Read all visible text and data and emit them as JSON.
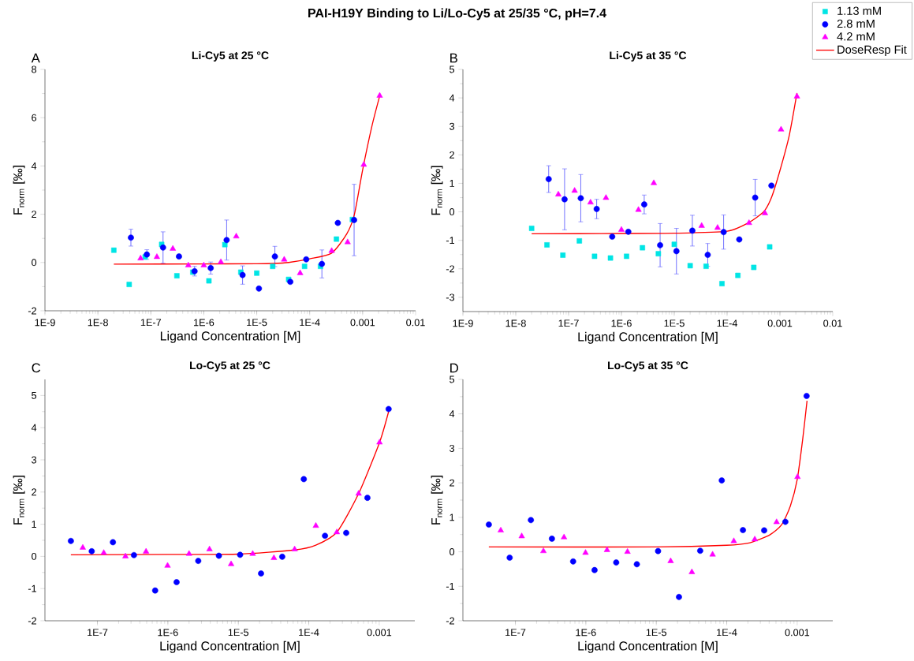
{
  "chart_data": [
    {
      "type": "scatter",
      "title": "Li-Cy5 at 25 °C",
      "xlabel": "Ligand Concentration [M]",
      "ylabel": "F$_{norm}$ [‰]",
      "log": "x",
      "annotations": [
        "PAI-H19Y Binding to Li/Lo-Cy5 at 25/35 °C, pH=7.4",
        "A"
      ],
      "xlim": [
        1e-09,
        0.01
      ],
      "ylim": [
        -2,
        8
      ],
      "xticks": [
        {
          "value": 1e-09,
          "label": "1E-9"
        },
        {
          "value": 1e-08,
          "label": "1E-8"
        },
        {
          "value": 1e-07,
          "label": "1E-7"
        },
        {
          "value": 1e-06,
          "label": "1E-6"
        },
        {
          "value": 1e-05,
          "label": "1E-5"
        },
        {
          "value": 0.0001,
          "label": "1E-4"
        },
        0.001,
        0.01
      ],
      "yticks": [
        -2,
        0,
        2,
        4,
        6,
        8
      ],
      "series": [
        {
          "marker": "square",
          "color": "#00e5e5",
          "x": [
            2e-08,
            3.9e-08,
            7.8e-08,
            1.6e-07,
            3.1e-07,
            6.2e-07,
            1.25e-06,
            2.5e-06,
            5e-06,
            1e-05,
            2e-05,
            4e-05,
            8e-05,
            0.00016,
            0.00032,
            0.00064
          ],
          "values": [
            0.51,
            -0.91,
            0.23,
            0.75,
            -0.55,
            -0.4,
            -0.76,
            0.74,
            -0.4,
            -0.44,
            -0.16,
            -0.7,
            -0.16,
            -0.16,
            0.97,
            1.78
          ]
        },
        {
          "marker": "circle",
          "color": "#0000ff",
          "x": [
            4.2e-08,
            8.4e-08,
            1.7e-07,
            3.4e-07,
            6.7e-07,
            1.35e-06,
            2.7e-06,
            5.4e-06,
            1.1e-05,
            2.2e-05,
            4.3e-05,
            8.6e-05,
            0.00017,
            0.00034,
            0.00069
          ],
          "values": [
            1.03,
            0.33,
            0.62,
            0.25,
            -0.36,
            -0.23,
            0.93,
            -0.52,
            -1.08,
            0.25,
            -0.8,
            0.13,
            -0.06,
            1.64,
            1.76
          ],
          "errors": [
            0.35,
            0.2,
            0.65,
            null,
            0.2,
            0.25,
            0.83,
            0.38,
            null,
            0.42,
            null,
            null,
            0.58,
            null,
            1.48
          ]
        },
        {
          "marker": "triangle",
          "color": "#ff00ff",
          "x": [
            6.4e-08,
            1.3e-07,
            2.6e-07,
            5.1e-07,
            1e-06,
            2.1e-06,
            4.1e-06,
            8.2e-06,
            1.6e-05,
            3.3e-05,
            6.6e-05,
            0.00013,
            0.00026,
            0.00052,
            0.00105,
            0.0021
          ],
          "values": [
            0.17,
            0.23,
            0.57,
            -0.12,
            -0.12,
            0.02,
            1.08,
            null,
            null,
            0.12,
            -0.44,
            null,
            0.48,
            0.84,
            4.05,
            6.91
          ]
        },
        {
          "type": "line",
          "marker": "none",
          "color": "#ff0000",
          "x": [
            2e-08,
            1e-06,
            1e-05,
            2e-05,
            4e-05,
            0.0001,
            0.00026,
            0.0005,
            0.0007,
            0.001,
            0.0015,
            0.0021
          ],
          "values": [
            -0.07,
            -0.06,
            -0.05,
            -0.04,
            0.0,
            0.15,
            0.39,
            1.18,
            2.0,
            3.84,
            5.66,
            6.9
          ]
        }
      ]
    },
    {
      "type": "scatter",
      "title": "Li-Cy5 at 35 °C",
      "xlabel": "Ligand Concentration [M]",
      "ylabel": "F$_{norm}$ [‰]",
      "log": "x",
      "legend": "top right",
      "annotations": [
        "B"
      ],
      "xlim": [
        1e-09,
        0.01
      ],
      "ylim": [
        -3.5,
        5
      ],
      "xticks": [
        {
          "value": 1e-09,
          "label": "1E-9"
        },
        {
          "value": 1e-08,
          "label": "1E-8"
        },
        {
          "value": 1e-07,
          "label": "1E-7"
        },
        {
          "value": 1e-06,
          "label": "1E-6"
        },
        {
          "value": 1e-05,
          "label": "1E-5"
        },
        {
          "value": 0.0001,
          "label": "1E-4"
        },
        0.001,
        0.01
      ],
      "yticks": [
        -3,
        -2,
        -1,
        0,
        1,
        2,
        3,
        4,
        5
      ],
      "series": [
        {
          "name": "1.13 mM",
          "marker": "square",
          "color": "#00e5e5",
          "x": [
            2e-08,
            3.9e-08,
            7.8e-08,
            1.6e-07,
            3.1e-07,
            6.2e-07,
            1.25e-06,
            2.5e-06,
            5e-06,
            1e-05,
            2e-05,
            4e-05,
            8e-05,
            0.00016,
            0.00032,
            0.00064
          ],
          "values": [
            -0.58,
            -1.16,
            -1.52,
            -1.02,
            -1.56,
            -1.62,
            -1.56,
            -1.26,
            -1.47,
            -1.14,
            -1.89,
            -1.91,
            -2.52,
            -2.23,
            -1.95,
            -1.23
          ]
        },
        {
          "name": "2.8 mM",
          "marker": "circle",
          "color": "#0000ff",
          "x": [
            4.2e-08,
            8.4e-08,
            1.7e-07,
            3.4e-07,
            6.7e-07,
            1.35e-06,
            2.7e-06,
            5.4e-06,
            1.1e-05,
            2.2e-05,
            4.3e-05,
            8.6e-05,
            0.00017,
            0.00034,
            0.00069
          ],
          "values": [
            1.15,
            0.44,
            0.48,
            0.1,
            -0.87,
            -0.7,
            0.26,
            -1.17,
            -1.38,
            -0.66,
            -1.51,
            -0.71,
            -0.97,
            0.5,
            0.92
          ],
          "errors": [
            0.47,
            1.07,
            0.83,
            0.34,
            null,
            null,
            0.33,
            0.76,
            0.8,
            0.54,
            0.4,
            0.6,
            null,
            0.64,
            null
          ]
        },
        {
          "name": "4.2 mM",
          "marker": "triangle",
          "color": "#ff00ff",
          "x": [
            6.4e-08,
            1.3e-07,
            2.6e-07,
            5.1e-07,
            1e-06,
            2.1e-06,
            4.1e-06,
            8.2e-06,
            1.6e-05,
            3.3e-05,
            6.6e-05,
            0.00013,
            0.00026,
            0.00052,
            0.00105,
            0.0021
          ],
          "values": [
            0.61,
            0.74,
            0.33,
            0.49,
            -0.63,
            0.07,
            1.01,
            null,
            null,
            -0.49,
            -0.56,
            null,
            -0.39,
            -0.05,
            2.89,
            4.05
          ]
        },
        {
          "name": "DoseResp Fit",
          "type": "line",
          "marker": "none",
          "color": "#ff0000",
          "x": [
            2e-08,
            1e-06,
            1e-05,
            0.0001,
            0.00026,
            0.0005,
            0.0007,
            0.001,
            0.0015,
            0.0021
          ],
          "values": [
            -0.77,
            -0.76,
            -0.75,
            -0.68,
            -0.37,
            0.02,
            0.53,
            1.45,
            2.68,
            4.17
          ]
        }
      ]
    },
    {
      "type": "scatter",
      "title": "Lo-Cy5 at 25 °C",
      "xlabel": "Ligand Concentration [M]",
      "ylabel": "F$_{norm}$ [‰]",
      "log": "x",
      "annotations": [
        "C"
      ],
      "xlim": [
        1.8e-08,
        0.0032
      ],
      "ylim": [
        -2,
        5.5
      ],
      "xticks": [
        {
          "value": 1e-07,
          "label": "1E-7"
        },
        {
          "value": 1e-06,
          "label": "1E-6"
        },
        {
          "value": 1e-05,
          "label": "1E-5"
        },
        {
          "value": 0.0001,
          "label": "1E-4"
        },
        0.001
      ],
      "yticks": [
        -2,
        -1,
        0,
        1,
        2,
        3,
        4,
        5
      ],
      "series": [
        {
          "marker": "circle",
          "color": "#0000ff",
          "x": [
            4.2e-08,
            8.3e-08,
            1.66e-07,
            3.3e-07,
            6.6e-07,
            1.33e-06,
            2.7e-06,
            5.3e-06,
            1.06e-05,
            2.1e-05,
            4.2e-05,
            8.5e-05,
            0.00017,
            0.00034,
            0.00068,
            0.00136
          ],
          "values": [
            0.48,
            0.16,
            0.44,
            0.04,
            -1.06,
            -0.8,
            -0.14,
            0.02,
            0.05,
            -0.53,
            -0.01,
            2.4,
            0.64,
            0.73,
            1.82,
            4.58
          ]
        },
        {
          "marker": "triangle",
          "color": "#ff00ff",
          "x": [
            6.2e-08,
            1.23e-07,
            2.5e-07,
            4.9e-07,
            9.9e-07,
            2e-06,
            3.9e-06,
            7.9e-06,
            1.6e-05,
            3.2e-05,
            6.3e-05,
            0.000126,
            0.00025,
            0.00051,
            0.00101
          ],
          "values": [
            0.27,
            0.11,
            0.0,
            0.15,
            -0.29,
            0.08,
            0.22,
            -0.24,
            0.08,
            -0.05,
            0.22,
            0.95,
            0.75,
            1.95,
            3.54
          ]
        },
        {
          "type": "line",
          "marker": "none",
          "color": "#ff0000",
          "x": [
            4.2e-08,
            1e-06,
            1e-05,
            6.3e-05,
            0.000126,
            0.00025,
            0.00051,
            0.00101,
            0.00136
          ],
          "values": [
            0.05,
            0.06,
            0.07,
            0.2,
            0.35,
            0.75,
            1.95,
            3.54,
            4.5
          ]
        }
      ]
    },
    {
      "type": "scatter",
      "title": "Lo-Cy5 at 35 °C",
      "xlabel": "Ligand Concentration [M]",
      "ylabel": "F$_{norm}$ [‰]",
      "log": "x",
      "annotations": [
        "D"
      ],
      "xlim": [
        1.8e-08,
        0.0032
      ],
      "ylim": [
        -2,
        5
      ],
      "xticks": [
        {
          "value": 1e-07,
          "label": "1E-7"
        },
        {
          "value": 1e-06,
          "label": "1E-6"
        },
        {
          "value": 1e-05,
          "label": "1E-5"
        },
        {
          "value": 0.0001,
          "label": "1E-4"
        },
        0.001
      ],
      "yticks": [
        -2,
        -1,
        0,
        1,
        2,
        3,
        4,
        5
      ],
      "series": [
        {
          "marker": "circle",
          "color": "#0000ff",
          "x": [
            4.2e-08,
            8.3e-08,
            1.66e-07,
            3.3e-07,
            6.6e-07,
            1.33e-06,
            2.7e-06,
            5.3e-06,
            1.06e-05,
            2.1e-05,
            4.2e-05,
            8.5e-05,
            0.00017,
            0.00034,
            0.00068,
            0.00136
          ],
          "values": [
            0.79,
            -0.17,
            0.92,
            0.38,
            -0.28,
            -0.53,
            -0.31,
            -0.36,
            0.02,
            -1.31,
            0.03,
            2.07,
            0.63,
            0.62,
            0.87,
            4.52
          ]
        },
        {
          "marker": "triangle",
          "color": "#ff00ff",
          "x": [
            6.2e-08,
            1.23e-07,
            2.5e-07,
            4.9e-07,
            9.9e-07,
            2e-06,
            3.9e-06,
            7.9e-06,
            1.6e-05,
            3.2e-05,
            6.3e-05,
            0.000126,
            0.00025,
            0.00051,
            0.00101
          ],
          "values": [
            0.62,
            0.45,
            0.02,
            0.42,
            -0.03,
            0.05,
            0.0,
            null,
            -0.27,
            -0.59,
            -0.08,
            0.31,
            0.36,
            0.86,
            2.17
          ]
        },
        {
          "type": "line",
          "marker": "none",
          "color": "#ff0000",
          "x": [
            4.2e-08,
            1e-05,
            0.0001,
            0.0002,
            0.0004,
            0.0006,
            0.0008,
            0.001,
            0.0012,
            0.00138
          ],
          "values": [
            0.14,
            0.14,
            0.19,
            0.25,
            0.48,
            0.78,
            1.33,
            2.09,
            3.28,
            4.38
          ]
        }
      ]
    }
  ]
}
